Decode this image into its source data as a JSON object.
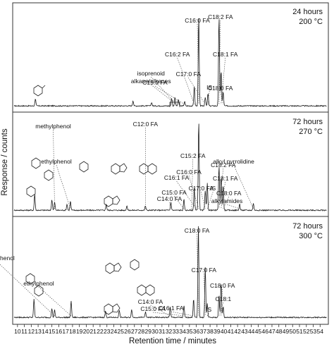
{
  "chart_data": {
    "type": "line",
    "xlabel": "Retention time / minutes",
    "ylabel": "Response / counts",
    "xlim": [
      9.3,
      55.2
    ],
    "x_ticks": [
      10,
      11,
      12,
      13,
      14,
      15,
      16,
      17,
      18,
      19,
      20,
      21,
      22,
      23,
      24,
      25,
      26,
      27,
      28,
      29,
      30,
      31,
      32,
      33,
      34,
      35,
      36,
      37,
      38,
      39,
      40,
      41,
      42,
      43,
      44,
      45,
      46,
      47,
      48,
      49,
      50,
      51,
      52,
      53,
      54
    ],
    "panels": [
      {
        "condition_time": "24 hours",
        "condition_temp": "200 °C",
        "peaks": [
          {
            "x": 12.6,
            "y": 0.08
          },
          {
            "x": 26.8,
            "y": 0.06
          },
          {
            "x": 29.5,
            "y": 0.04
          },
          {
            "x": 32.4,
            "y": 0.09
          },
          {
            "x": 32.9,
            "y": 0.1
          },
          {
            "x": 33.4,
            "y": 0.07
          },
          {
            "x": 34.3,
            "y": 0.05
          },
          {
            "x": 35.7,
            "y": 0.22
          },
          {
            "x": 36.35,
            "y": 1.0
          },
          {
            "x": 37.3,
            "y": 0.1
          },
          {
            "x": 37.7,
            "y": 0.14
          },
          {
            "x": 39.3,
            "y": 1.0
          },
          {
            "x": 39.6,
            "y": 0.4
          },
          {
            "x": 39.9,
            "y": 0.16
          }
        ],
        "labels": [
          {
            "text": "C16:0 FA",
            "x": 36.35
          },
          {
            "text": "C18:2 FA",
            "x": 39.3
          },
          {
            "text": "C16:2 FA",
            "x": 35.7
          },
          {
            "text": "C18:1 FA",
            "x": 39.6
          },
          {
            "text": "isoprenoid",
            "x": 33.1
          },
          {
            "text": "alkane/alkenes",
            "x": 33.1
          },
          {
            "text": "C17:0 FA",
            "x": 37.3
          },
          {
            "text": "C15:0 FA",
            "x": 34.3
          },
          {
            "text": "IS",
            "x": 37.7
          },
          {
            "text": "C18:0 FA",
            "x": 39.9
          }
        ]
      },
      {
        "condition_time": "72 hours",
        "condition_temp": "270 °C",
        "peaks": [
          {
            "x": 12.5,
            "y": 0.18
          },
          {
            "x": 15.0,
            "y": 0.12
          },
          {
            "x": 15.4,
            "y": 0.09
          },
          {
            "x": 17.2,
            "y": 0.07
          },
          {
            "x": 17.7,
            "y": 0.1
          },
          {
            "x": 22.9,
            "y": 0.07
          },
          {
            "x": 25.9,
            "y": 0.05
          },
          {
            "x": 28.6,
            "y": 0.05
          },
          {
            "x": 32.3,
            "y": 0.09
          },
          {
            "x": 34.2,
            "y": 0.12
          },
          {
            "x": 35.7,
            "y": 0.25
          },
          {
            "x": 36.35,
            "y": 1.0
          },
          {
            "x": 37.3,
            "y": 0.22
          },
          {
            "x": 37.6,
            "y": 0.3
          },
          {
            "x": 39.3,
            "y": 0.5
          },
          {
            "x": 39.6,
            "y": 0.38
          },
          {
            "x": 39.9,
            "y": 0.28
          },
          {
            "x": 42.3,
            "y": 0.07
          },
          {
            "x": 44.3,
            "y": 0.08
          }
        ],
        "labels": [
          {
            "text": "methylphenol",
            "x": 15.4
          },
          {
            "text": "ethylphenol",
            "x": 17.7
          },
          {
            "text": "C16:0 FA",
            "x": 36.35
          },
          {
            "text": "C15:2 FA",
            "x": 35.3
          },
          {
            "text": "C16:1 FA",
            "x": 36.0
          },
          {
            "text": "C18:2 FA",
            "x": 39.3
          },
          {
            "text": "C17:0 FA",
            "x": 37.3
          },
          {
            "text": "C18:1 FA",
            "x": 39.6
          },
          {
            "text": "IS",
            "x": 37.6
          },
          {
            "text": "C18:0 FA",
            "x": 39.9
          },
          {
            "text": "alkylamides",
            "x": 42.3
          },
          {
            "text": "alkyl pyrrolidine",
            "x": 44.3
          },
          {
            "text": "C15:0 FA",
            "x": 34.2
          },
          {
            "text": "C14:0 FA",
            "x": 32.3
          },
          {
            "text": "C12:0 FA",
            "x": 28.6
          }
        ]
      },
      {
        "condition_time": "72 hours",
        "condition_temp": "300 °C",
        "peaks": [
          {
            "x": 12.4,
            "y": 0.2
          },
          {
            "x": 15.0,
            "y": 0.1
          },
          {
            "x": 15.4,
            "y": 0.08
          },
          {
            "x": 17.8,
            "y": 0.18
          },
          {
            "x": 22.8,
            "y": 0.07
          },
          {
            "x": 24.8,
            "y": 0.08
          },
          {
            "x": 26.6,
            "y": 0.09
          },
          {
            "x": 28.6,
            "y": 0.06
          },
          {
            "x": 32.2,
            "y": 0.12
          },
          {
            "x": 34.2,
            "y": 0.13
          },
          {
            "x": 35.6,
            "y": 0.2
          },
          {
            "x": 36.3,
            "y": 1.0
          },
          {
            "x": 37.3,
            "y": 0.55
          },
          {
            "x": 37.6,
            "y": 0.15
          },
          {
            "x": 39.3,
            "y": 0.25
          },
          {
            "x": 39.6,
            "y": 0.38
          },
          {
            "x": 39.9,
            "y": 0.12
          }
        ],
        "labels": [
          {
            "text": "C18:0 FA",
            "x": 36.3
          },
          {
            "text": "methylphenol",
            "x": 15.4
          },
          {
            "text": "ethylphenol",
            "x": 17.8
          },
          {
            "text": "C17:0 FA",
            "x": 37.3
          },
          {
            "text": "C18:0 FA",
            "x": 39.6
          },
          {
            "text": "C16:1 FA",
            "x": 35.6
          },
          {
            "text": "C14:0 FA",
            "x": 32.2
          },
          {
            "text": "C15:0 FA",
            "x": 34.2
          },
          {
            "text": "C18:1",
            "x": 39.3
          },
          {
            "text": "IS",
            "x": 37.6
          }
        ]
      }
    ]
  }
}
